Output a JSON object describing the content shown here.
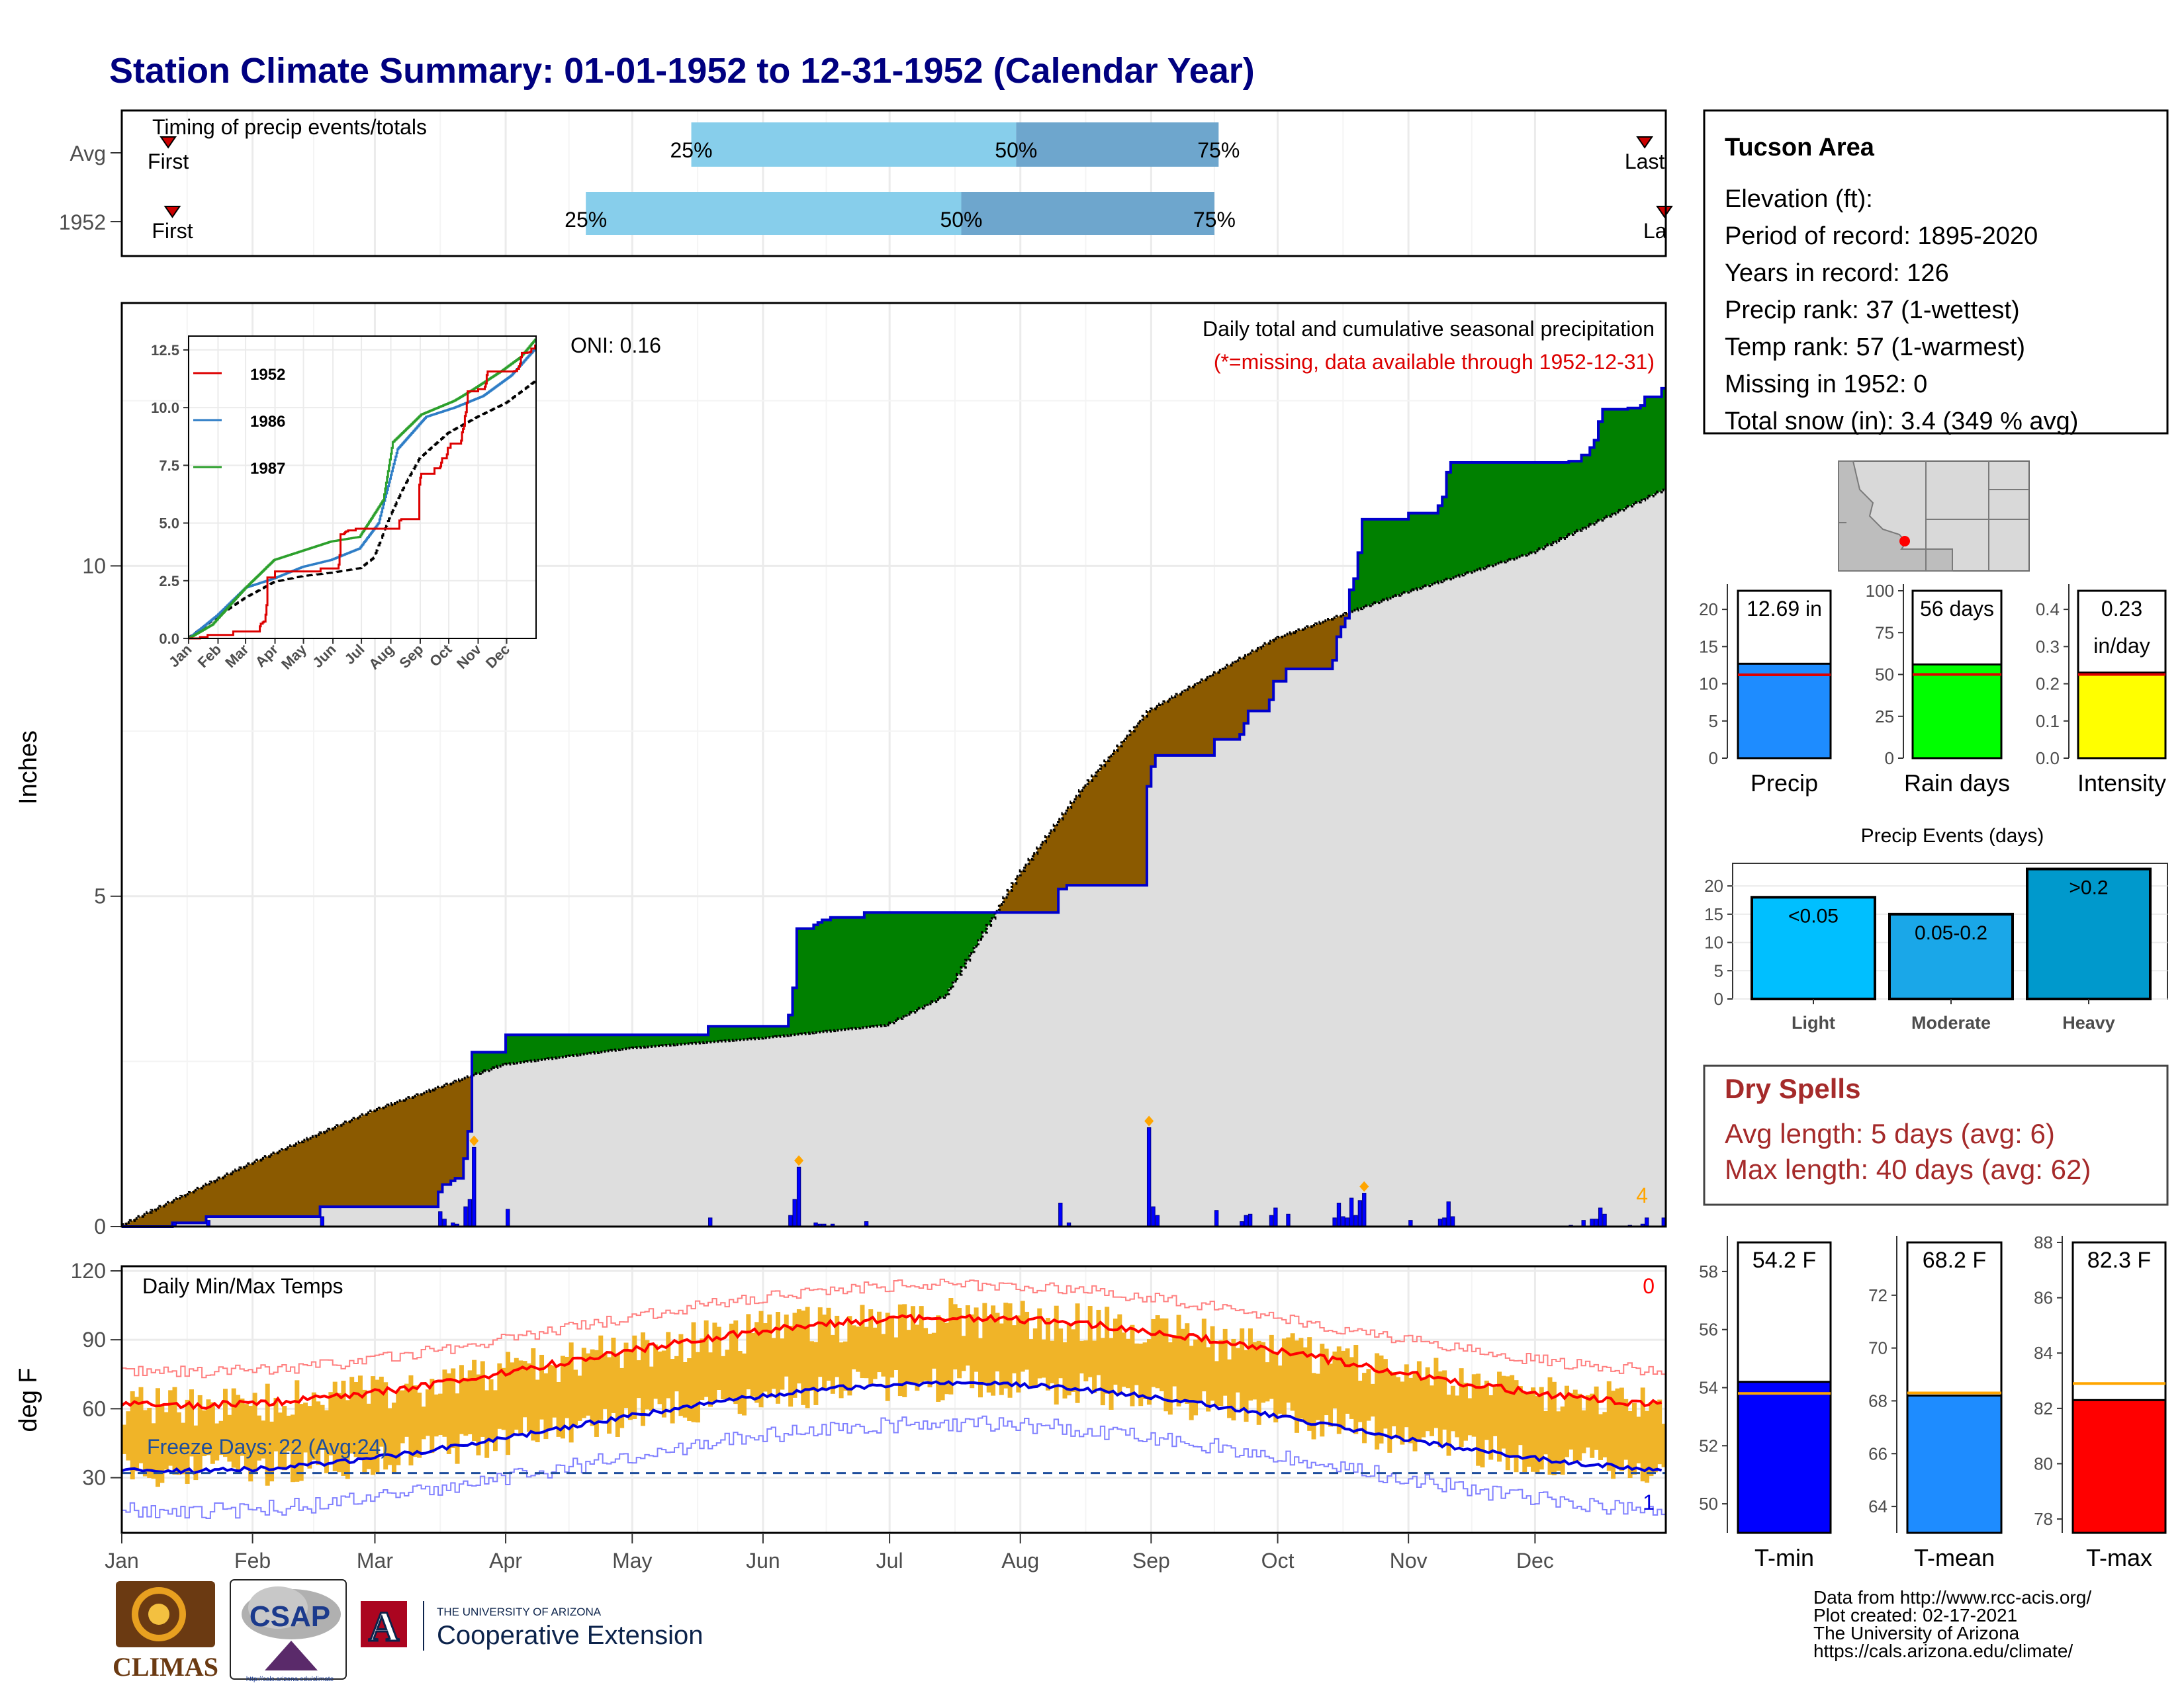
{
  "title": "Station Climate Summary: 01-01-1952 to 12-31-1952 (Calendar Year)",
  "timing": {
    "title": "Timing of precip events/totals",
    "rows": [
      {
        "label": "Avg",
        "first_label": "First",
        "last_label": "Last",
        "first_doy": 11,
        "last_doy": 361,
        "q25": 135,
        "q50": 212,
        "q75": 260,
        "q25_label": "25%",
        "q50_label": "50%",
        "q75_label": "75%"
      },
      {
        "label": "1952",
        "first_label": "First",
        "last_label": "La",
        "first_doy": 12,
        "last_doy": 366,
        "q25": 110,
        "q50": 199,
        "q75": 259,
        "q25_label": "25%",
        "q50_label": "50%",
        "q75_label": "75%"
      }
    ],
    "colors": {
      "light": "#87ceeb",
      "dark": "#6ea6cd",
      "marker": "#cc0000"
    }
  },
  "precip": {
    "ylabel": "Inches",
    "yticks": [
      "0",
      "5",
      "10"
    ],
    "oni_label": "ONI: 0.16",
    "header1": "Daily total and cumulative seasonal precipitation",
    "header2": "(*=missing, data available through 1952-12-31)",
    "corner_count": "4",
    "colors": {
      "above": "#008000",
      "below": "#8b5a00",
      "normal": "#dedede",
      "line": "#0000cc",
      "bars": "#0000ff",
      "extreme": "#ffa500",
      "header2": "#dd0000",
      "corner": "#ffa500"
    }
  },
  "inset": {
    "yticks": [
      "0.0",
      "2.5",
      "5.0",
      "7.5",
      "10.0",
      "12.5"
    ],
    "xticks": [
      "Jan",
      "Feb",
      "Mar",
      "Apr",
      "May",
      "Jun",
      "Jul",
      "Aug",
      "Sep",
      "Oct",
      "Nov",
      "Dec"
    ],
    "legend": [
      {
        "name": "1952",
        "color": "#dd0000"
      },
      {
        "name": "1986",
        "color": "#2e7dc6"
      },
      {
        "name": "1987",
        "color": "#2ca02c"
      }
    ]
  },
  "temps": {
    "label": "Daily Min/Max Temps",
    "ylabel": "deg F",
    "yticks": [
      "30",
      "60",
      "90",
      "120"
    ],
    "freeze_label": "Freeze Days: 22 (Avg:24)",
    "count_top": "0",
    "count_bottom": "1",
    "colors": {
      "bar": "#f0b428",
      "max_line": "#ff0000",
      "min_line": "#0000dd",
      "freeze": "#1f4e9c"
    }
  },
  "months": [
    "Jan",
    "Feb",
    "Mar",
    "Apr",
    "May",
    "Jun",
    "Jul",
    "Aug",
    "Sep",
    "Oct",
    "Nov",
    "Dec"
  ],
  "info": {
    "lines": [
      "Tucson Area",
      "Elevation (ft):",
      "Period of record: 1895-2020",
      "Years in record: 126",
      "Precip rank: 37 (1-wettest)",
      "Temp rank: 57 (1-warmest)",
      "Missing in 1952: 0",
      "Total snow (in): 3.4 (349 % avg)"
    ]
  },
  "summary_bars": [
    {
      "name": "Precip",
      "value_label": "12.69 in",
      "value": 12.69,
      "avg": 11.2,
      "ymax": 22.5,
      "yticks": [
        "0",
        "5",
        "10",
        "15",
        "20"
      ],
      "color": "#1e8cff"
    },
    {
      "name": "Rain days",
      "value_label": "56 days",
      "value": 56,
      "avg": 50,
      "ymax": 100,
      "yticks": [
        "0",
        "25",
        "50",
        "75",
        "100"
      ],
      "color": "#00ff00"
    },
    {
      "name": "Intensity",
      "value_label": "0.23",
      "value_label2": "in/day",
      "value": 0.23,
      "avg": 0.225,
      "ymax": 0.45,
      "yticks": [
        "0.0",
        "0.1",
        "0.2",
        "0.3",
        "0.4"
      ],
      "color": "#ffff00"
    }
  ],
  "events": {
    "title": "Precip Events (days)",
    "yticks": [
      "0",
      "5",
      "10",
      "15",
      "20"
    ],
    "ymax": 24,
    "bars": [
      {
        "category": "Light",
        "label": "<0.05",
        "value": 18,
        "color": "#00bfff"
      },
      {
        "category": "Moderate",
        "label": "0.05-0.2",
        "value": 15,
        "color": "#1aa7e8"
      },
      {
        "category": "Heavy",
        "label": ">0.2",
        "value": 23,
        "color": "#0099cc"
      }
    ]
  },
  "dry_spells": {
    "title": "Dry Spells",
    "line1": "Avg length: 5 days (avg: 6)",
    "line2": "Max length: 40 days (avg: 62)",
    "color": "#a52a2a"
  },
  "temp_bars": [
    {
      "name": "T-min",
      "value_label": "54.2 F",
      "value": 54.2,
      "avg": 53.8,
      "ymin": 49,
      "ymax": 59,
      "yticks": [
        "50",
        "52",
        "54",
        "56",
        "58"
      ],
      "color": "#0000ff"
    },
    {
      "name": "T-mean",
      "value_label": "68.2 F",
      "value": 68.2,
      "avg": 68.3,
      "ymin": 63,
      "ymax": 74,
      "yticks": [
        "64",
        "66",
        "68",
        "70",
        "72"
      ],
      "color": "#1e8cff"
    },
    {
      "name": "T-max",
      "value_label": "82.3 F",
      "value": 82.3,
      "avg": 82.9,
      "ymin": 77.5,
      "ymax": 88,
      "yticks": [
        "78",
        "80",
        "82",
        "84",
        "86",
        "88"
      ],
      "color": "#ff0000"
    }
  ],
  "footer": {
    "logo1": "CLIMAS",
    "logo2": "CSAP",
    "logo2_url": "http://cals.arizona.edu/climate",
    "ua_small": "THE UNIVERSITY OF ARIZONA",
    "ua_big": "Cooperative Extension",
    "credits": [
      "Data from http://www.rcc-acis.org/",
      "Plot created: 02-17-2021",
      "The University of Arizona",
      "https://cals.arizona.edu/climate/"
    ]
  }
}
